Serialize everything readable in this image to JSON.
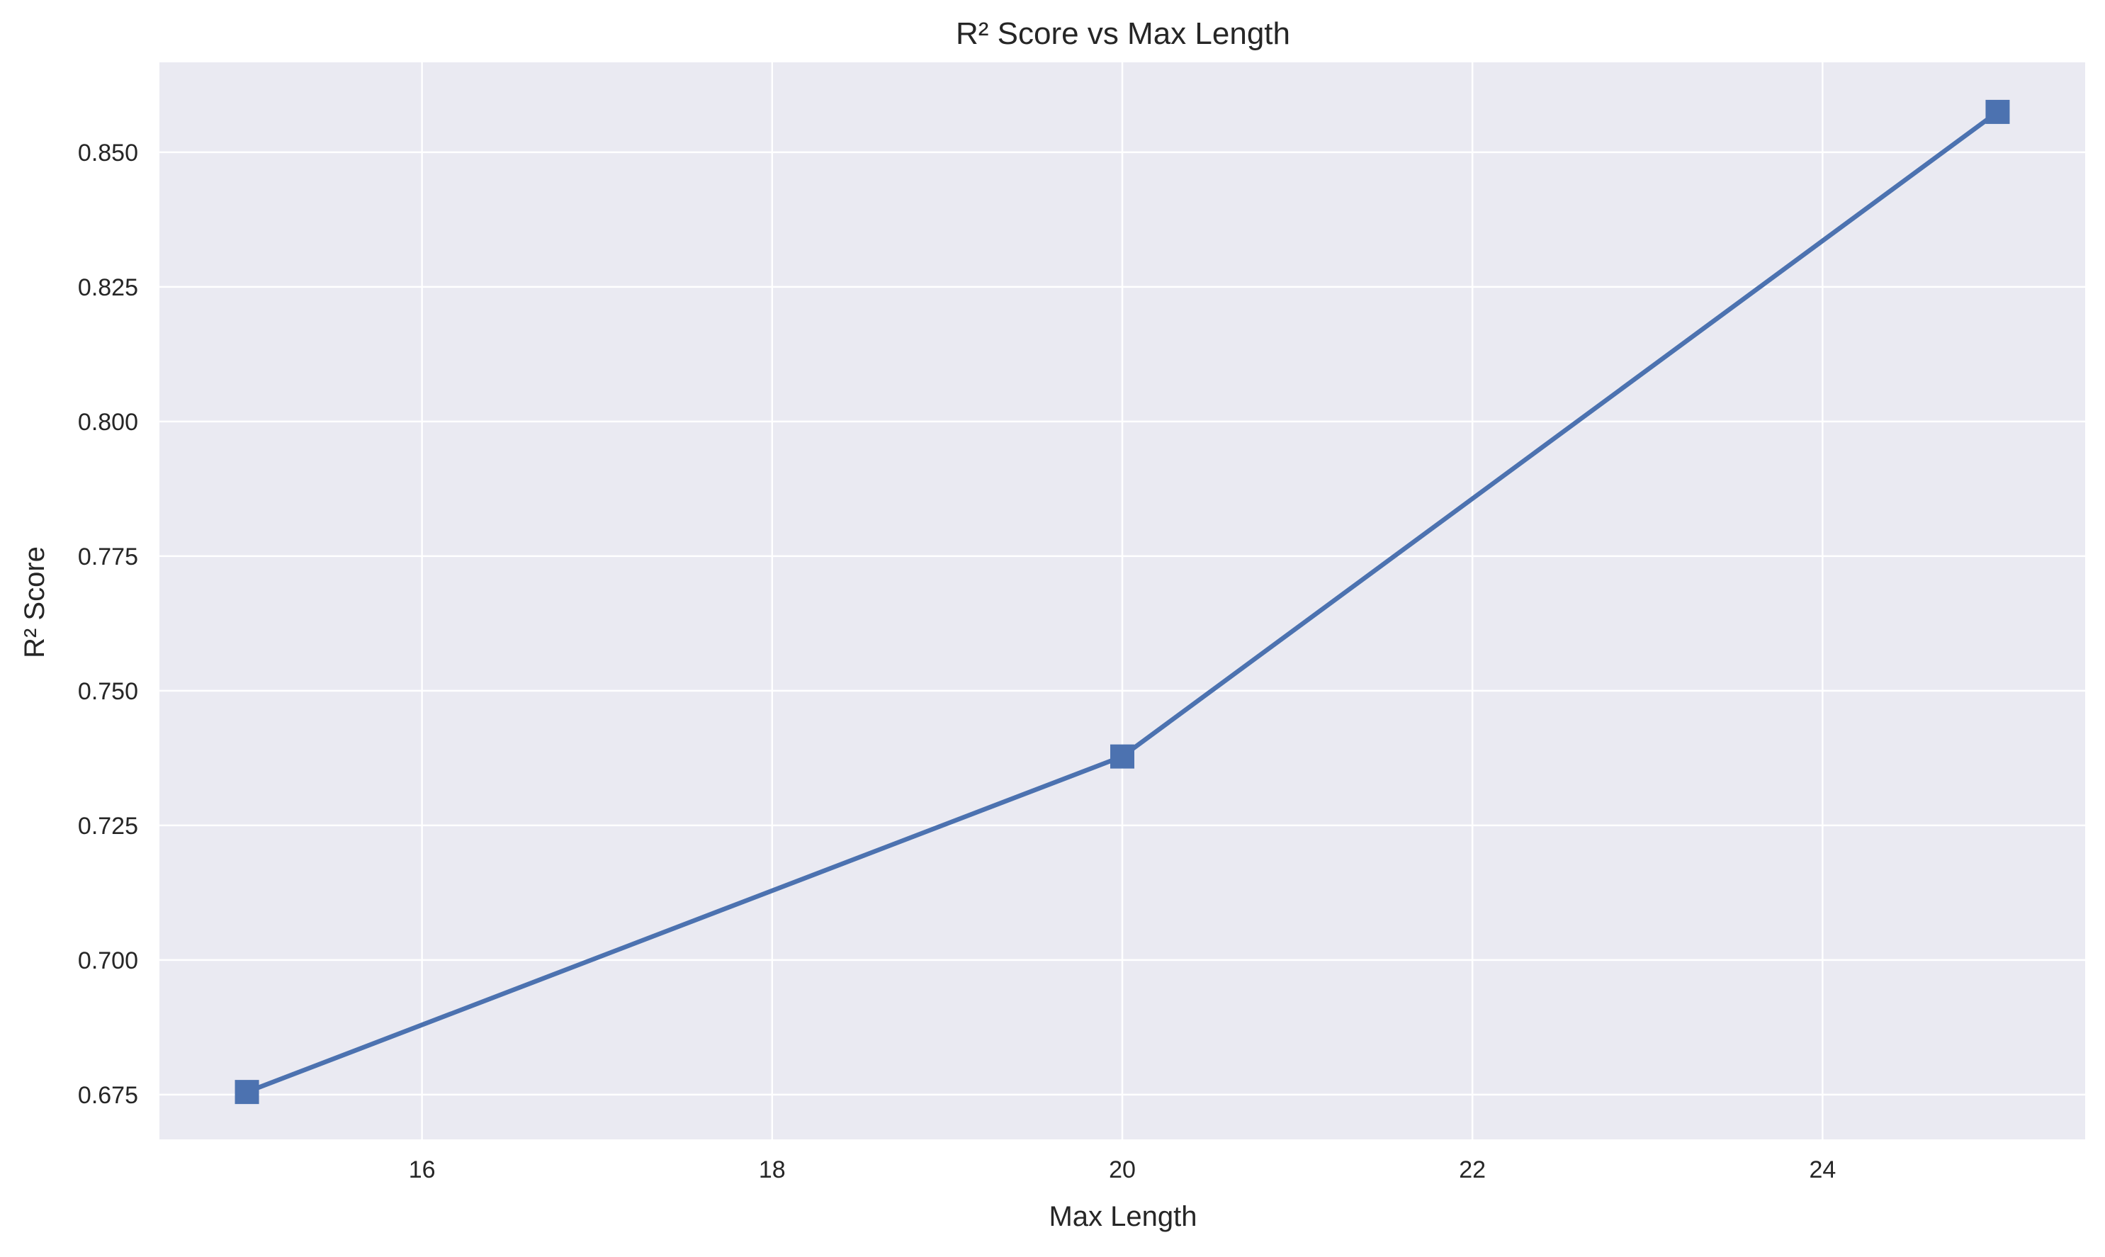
{
  "chart_data": {
    "type": "line",
    "title": "R² Score vs Max Length",
    "xlabel": "Max Length",
    "ylabel": "R² Score",
    "xlim": [
      14.5,
      25.5
    ],
    "ylim": [
      0.6667,
      0.8667
    ],
    "x_ticks": [
      16,
      18,
      20,
      22,
      24
    ],
    "y_ticks": [
      0.675,
      0.7,
      0.725,
      0.75,
      0.775,
      0.8,
      0.825,
      0.85
    ],
    "x_tick_labels": [
      "16",
      "18",
      "20",
      "22",
      "24"
    ],
    "y_tick_labels": [
      "0.675",
      "0.700",
      "0.725",
      "0.750",
      "0.775",
      "0.800",
      "0.825",
      "0.850"
    ],
    "grid": true,
    "marker": "square",
    "colors": {
      "series": "#4c72b0",
      "plot_bg": "#eaeaf2",
      "grid": "#ffffff"
    },
    "series": [
      {
        "x": [
          15,
          20,
          25
        ],
        "values": [
          0.6755,
          0.7378,
          0.8575
        ]
      }
    ]
  }
}
